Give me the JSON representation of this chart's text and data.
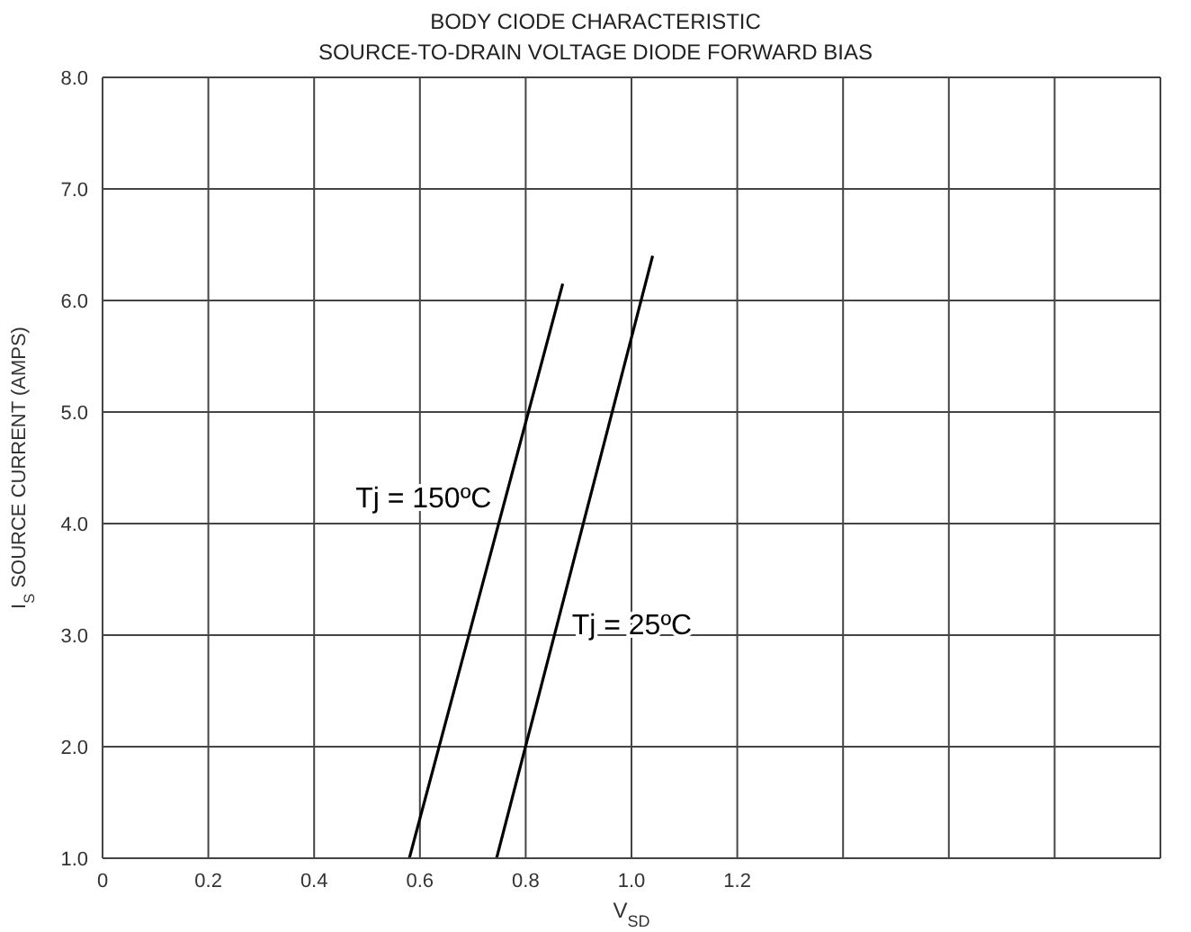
{
  "chart_data": {
    "type": "line",
    "title": "BODY CIODE CHARACTERISTIC",
    "subtitle": "SOURCE-TO-DRAIN VOLTAGE DIODE FORWARD BIAS",
    "xlabel": "V$_{SD}$",
    "ylabel": "I$_{S}$ SOURCE CURRENT (AMPS)",
    "series": [
      {
        "name": "Tj = 150ºC",
        "x": [
          0.58,
          0.87
        ],
        "values": [
          1.0,
          6.15
        ],
        "color": "#000000"
      },
      {
        "name": "Tj = 25ºC",
        "x": [
          0.745,
          1.04
        ],
        "values": [
          1.0,
          6.4
        ],
        "color": "#000000"
      }
    ],
    "xlim": [
      0,
      2.0
    ],
    "xticks": [
      0,
      0.2,
      0.4,
      0.6,
      0.8,
      {
        "value": 1,
        "label": "1.0"
      },
      1.2,
      {
        "value": 1.4,
        "label": null
      },
      {
        "value": 1.6,
        "label": null
      },
      {
        "value": 1.8,
        "label": null
      }
    ],
    "ylim": [
      1,
      8
    ],
    "yticks": [
      {
        "value": 1,
        "label": "1.0"
      },
      {
        "value": 2,
        "label": "2.0"
      },
      {
        "value": 3,
        "label": "3.0"
      },
      {
        "value": 4,
        "label": "4.0"
      },
      {
        "value": 5,
        "label": "5.0"
      },
      {
        "value": 6,
        "label": "6.0"
      },
      {
        "value": 7,
        "label": "7.0"
      },
      {
        "value": 8,
        "label": "8.0"
      }
    ],
    "grid": true,
    "marker": "none",
    "line_style": "solid"
  }
}
